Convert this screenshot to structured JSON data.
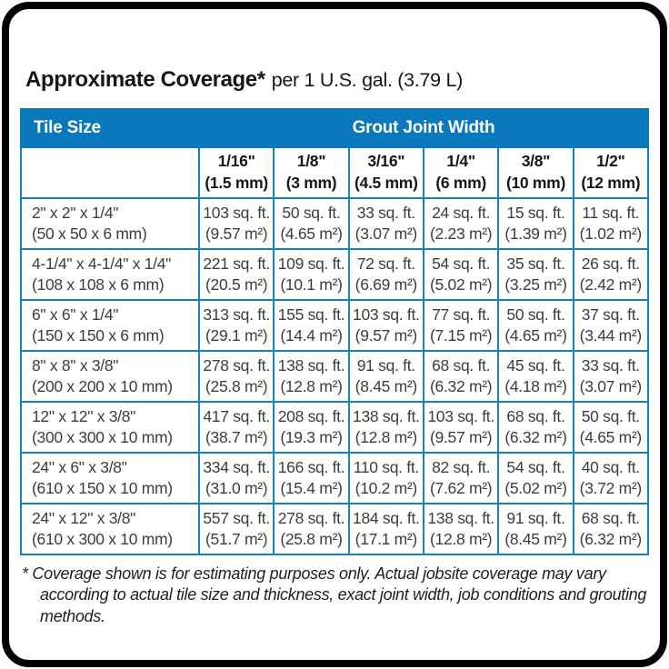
{
  "title": {
    "bold": "Approximate Coverage*",
    "suffix": "per 1 U.S. gal. (3.79 L)"
  },
  "table": {
    "tile_size_header": "Tile Size",
    "grout_header": "Grout Joint Width",
    "columns": [
      {
        "inch": "1/16\"",
        "mm": "(1.5 mm)"
      },
      {
        "inch": "1/8\"",
        "mm": "(3 mm)"
      },
      {
        "inch": "3/16\"",
        "mm": "(4.5 mm)"
      },
      {
        "inch": "1/4\"",
        "mm": "(6 mm)"
      },
      {
        "inch": "3/8\"",
        "mm": "(10 mm)"
      },
      {
        "inch": "1/2\"",
        "mm": "(12 mm)"
      }
    ],
    "rows": [
      {
        "size_in": "2\" x 2\" x 1/4\"",
        "size_mm": "(50 x 50 x 6 mm)",
        "cells": [
          {
            "sqft": "103 sq. ft.",
            "m2": "(9.57 m²)"
          },
          {
            "sqft": "50 sq. ft.",
            "m2": "(4.65 m²)"
          },
          {
            "sqft": "33 sq. ft.",
            "m2": "(3.07 m²)"
          },
          {
            "sqft": "24 sq. ft.",
            "m2": "(2.23 m²)"
          },
          {
            "sqft": "15 sq. ft.",
            "m2": "(1.39 m²)"
          },
          {
            "sqft": "11 sq. ft.",
            "m2": "(1.02 m²)"
          }
        ]
      },
      {
        "size_in": "4-1/4\" x 4-1/4\" x 1/4\"",
        "size_mm": "(108 x 108 x 6 mm)",
        "cells": [
          {
            "sqft": "221 sq. ft.",
            "m2": "(20.5 m²)"
          },
          {
            "sqft": "109 sq. ft.",
            "m2": "(10.1 m²)"
          },
          {
            "sqft": "72 sq. ft.",
            "m2": "(6.69 m²)"
          },
          {
            "sqft": "54 sq. ft.",
            "m2": "(5.02 m²)"
          },
          {
            "sqft": "35 sq. ft.",
            "m2": "(3.25 m²)"
          },
          {
            "sqft": "26 sq. ft.",
            "m2": "(2.42 m²)"
          }
        ]
      },
      {
        "size_in": "6\" x 6\" x 1/4\"",
        "size_mm": "(150 x 150 x 6 mm)",
        "cells": [
          {
            "sqft": "313 sq. ft.",
            "m2": "(29.1 m²)"
          },
          {
            "sqft": "155 sq. ft.",
            "m2": "(14.4 m²)"
          },
          {
            "sqft": "103 sq. ft.",
            "m2": "(9.57 m²)"
          },
          {
            "sqft": "77 sq. ft.",
            "m2": "(7.15 m²)"
          },
          {
            "sqft": "50 sq. ft.",
            "m2": "(4.65 m²)"
          },
          {
            "sqft": "37 sq. ft.",
            "m2": "(3.44 m²)"
          }
        ]
      },
      {
        "size_in": "8\" x 8\" x 3/8\"",
        "size_mm": "(200 x 200 x 10 mm)",
        "cells": [
          {
            "sqft": "278 sq. ft.",
            "m2": "(25.8 m²)"
          },
          {
            "sqft": "138 sq. ft.",
            "m2": "(12.8 m²)"
          },
          {
            "sqft": "91 sq. ft.",
            "m2": "(8.45 m²)"
          },
          {
            "sqft": "68 sq. ft.",
            "m2": "(6.32 m²)"
          },
          {
            "sqft": "45 sq. ft.",
            "m2": "(4.18 m²)"
          },
          {
            "sqft": "33 sq. ft.",
            "m2": "(3.07 m²)"
          }
        ]
      },
      {
        "size_in": "12\" x 12\" x 3/8\"",
        "size_mm": "(300 x 300 x 10 mm)",
        "cells": [
          {
            "sqft": "417 sq. ft.",
            "m2": "(38.7 m²)"
          },
          {
            "sqft": "208 sq. ft.",
            "m2": "(19.3 m²)"
          },
          {
            "sqft": "138 sq. ft.",
            "m2": "(12.8 m²)"
          },
          {
            "sqft": "103 sq. ft.",
            "m2": "(9.57 m²)"
          },
          {
            "sqft": "68 sq. ft.",
            "m2": "(6.32 m²)"
          },
          {
            "sqft": "50 sq. ft.",
            "m2": "(4.65 m²)"
          }
        ]
      },
      {
        "size_in": "24\" x 6\" x 3/8\"",
        "size_mm": "(610 x 150 x 10 mm)",
        "cells": [
          {
            "sqft": "334 sq. ft.",
            "m2": "(31.0 m²)"
          },
          {
            "sqft": "166 sq. ft.",
            "m2": "(15.4 m²)"
          },
          {
            "sqft": "110 sq. ft.",
            "m2": "(10.2 m²)"
          },
          {
            "sqft": "82 sq. ft.",
            "m2": "(7.62 m²)"
          },
          {
            "sqft": "54 sq. ft.",
            "m2": "(5.02 m²)"
          },
          {
            "sqft": "40 sq. ft.",
            "m2": "(3.72 m²)"
          }
        ]
      },
      {
        "size_in": "24\" x 12\" x 3/8\"",
        "size_mm": "(610 x 300 x 10 mm)",
        "cells": [
          {
            "sqft": "557 sq. ft.",
            "m2": "(51.7 m²)"
          },
          {
            "sqft": "278 sq. ft.",
            "m2": "(25.8 m²)"
          },
          {
            "sqft": "184 sq. ft.",
            "m2": "(17.1 m²)"
          },
          {
            "sqft": "138 sq. ft.",
            "m2": "(12.8 m²)"
          },
          {
            "sqft": "91 sq. ft.",
            "m2": "(8.45 m²)"
          },
          {
            "sqft": "68 sq. ft.",
            "m2": "(6.32 m²)"
          }
        ]
      }
    ]
  },
  "footnote": "* Coverage shown is for estimating purposes only. Actual jobsite coverage may vary according to actual tile size and thickness, exact joint width, job conditions and grouting methods.",
  "colors": {
    "header_blue": "#0a78bd",
    "grid_blue": "#1580c2",
    "frame_black": "#000000",
    "data_text": "#3d3d3d"
  }
}
